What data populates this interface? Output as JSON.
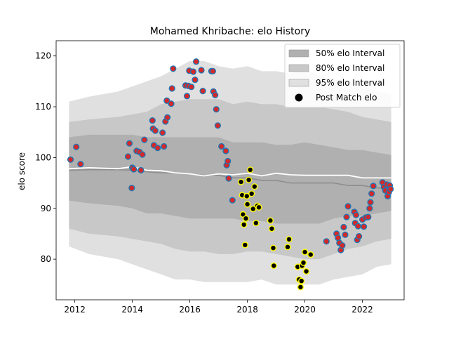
{
  "chart_data": {
    "type": "scatter",
    "title": "Mohamed Khribache: elo History",
    "xlabel": "",
    "ylabel": "elo score",
    "xlim": [
      2011.35,
      2023.45
    ],
    "ylim": [
      72.0,
      123.0
    ],
    "x_ticks": [
      2012,
      2014,
      2016,
      2018,
      2020,
      2022
    ],
    "y_ticks": [
      80,
      90,
      100,
      110,
      120
    ],
    "legend_position": "top-right",
    "legend": [
      {
        "label": "50% elo Interval",
        "color": "#b0b0b0",
        "kind": "patch"
      },
      {
        "label": "80% elo Interval",
        "color": "#c8c8c8",
        "kind": "patch"
      },
      {
        "label": "95% elo Interval",
        "color": "#e0e0e0",
        "kind": "patch"
      },
      {
        "label": "Post Match elo",
        "color": "#000000",
        "kind": "marker"
      }
    ],
    "colors": {
      "band50": "#b0b0b0",
      "band80": "#c8c8c8",
      "band95": "#e0e0e0",
      "median_line": "#8c8c8c",
      "mean_line": "#ffffff",
      "marker_fill_blue": "#1f77b4",
      "marker_inner_red": "#d62728",
      "marker_fill_yellow": "#ffff00",
      "marker_inner_black": "#000000"
    },
    "bands": {
      "x": [
        2011.8,
        2012.5,
        2013.5,
        2014.0,
        2014.5,
        2015.0,
        2015.5,
        2016.0,
        2016.5,
        2017.0,
        2017.5,
        2018.0,
        2018.5,
        2019.0,
        2019.5,
        2020.0,
        2020.5,
        2021.0,
        2021.5,
        2022.0,
        2022.5,
        2023.0
      ],
      "p95_hi": [
        111.0,
        112.0,
        113.0,
        114.0,
        115.0,
        116.0,
        117.5,
        119.0,
        119.0,
        118.0,
        117.5,
        118.0,
        117.0,
        117.0,
        116.5,
        117.5,
        116.0,
        115.5,
        115.0,
        114.0,
        113.0,
        112.5
      ],
      "p80_hi": [
        107.0,
        107.5,
        108.0,
        108.5,
        109.0,
        110.5,
        111.0,
        111.5,
        111.5,
        111.5,
        110.5,
        111.0,
        110.5,
        110.5,
        110.0,
        110.0,
        110.0,
        109.5,
        109.0,
        108.0,
        107.5,
        107.0
      ],
      "p50_hi": [
        104.0,
        104.5,
        104.5,
        104.5,
        104.0,
        104.0,
        104.0,
        104.0,
        104.0,
        104.0,
        103.0,
        103.0,
        103.0,
        102.5,
        102.5,
        103.0,
        102.5,
        102.0,
        101.5,
        101.5,
        101.0,
        100.5
      ],
      "p50_lo": [
        91.5,
        91.0,
        90.5,
        90.0,
        89.0,
        89.0,
        88.5,
        88.0,
        88.0,
        88.0,
        88.0,
        87.5,
        87.5,
        87.0,
        87.0,
        87.0,
        87.0,
        88.0,
        88.5,
        88.5,
        89.0,
        89.5
      ],
      "p80_lo": [
        86.0,
        85.0,
        84.5,
        84.0,
        83.5,
        83.0,
        82.0,
        81.5,
        81.5,
        81.0,
        81.0,
        81.5,
        81.5,
        81.0,
        80.5,
        80.0,
        80.0,
        81.0,
        82.0,
        82.5,
        83.5,
        84.0
      ],
      "p95_lo": [
        82.5,
        81.0,
        80.0,
        79.0,
        78.0,
        77.0,
        76.0,
        76.0,
        75.5,
        75.5,
        75.5,
        75.5,
        76.0,
        75.0,
        75.0,
        75.0,
        75.0,
        76.0,
        76.5,
        77.0,
        78.5,
        79.0
      ],
      "median": [
        97.5,
        97.6,
        97.6,
        97.5,
        97.2,
        97.0,
        97.0,
        96.8,
        96.5,
        96.5,
        96.0,
        96.0,
        95.5,
        95.5,
        95.0,
        95.0,
        95.0,
        95.0,
        94.5,
        94.5,
        94.0,
        94.0
      ],
      "mean": [
        97.8,
        98.0,
        97.8,
        98.2,
        97.5,
        97.4,
        97.0,
        96.8,
        96.4,
        96.8,
        96.6,
        96.9,
        96.4,
        96.9,
        96.6,
        96.5,
        96.5,
        96.5,
        96.5,
        96.0,
        96.0,
        96.0
      ]
    },
    "series": [
      {
        "name": "Post Match elo",
        "style": "blue",
        "points": [
          [
            2011.85,
            99.6
          ],
          [
            2012.05,
            102.1
          ],
          [
            2012.2,
            98.7
          ],
          [
            2013.85,
            100.2
          ],
          [
            2013.9,
            102.8
          ],
          [
            2014.0,
            98.0
          ],
          [
            2014.05,
            97.7
          ],
          [
            2013.98,
            94.0
          ],
          [
            2014.15,
            101.3
          ],
          [
            2014.25,
            101.1
          ],
          [
            2014.35,
            100.6
          ],
          [
            2014.3,
            97.5
          ],
          [
            2014.42,
            103.5
          ],
          [
            2014.7,
            107.3
          ],
          [
            2014.72,
            105.7
          ],
          [
            2014.8,
            105.3
          ],
          [
            2014.75,
            102.4
          ],
          [
            2014.88,
            101.9
          ],
          [
            2015.05,
            104.9
          ],
          [
            2015.1,
            102.2
          ],
          [
            2015.15,
            107.1
          ],
          [
            2015.2,
            111.2
          ],
          [
            2015.22,
            107.9
          ],
          [
            2015.35,
            110.6
          ],
          [
            2015.38,
            113.6
          ],
          [
            2015.42,
            117.5
          ],
          [
            2015.85,
            114.2
          ],
          [
            2015.9,
            112.1
          ],
          [
            2015.95,
            114.1
          ],
          [
            2015.98,
            117.1
          ],
          [
            2016.05,
            113.9
          ],
          [
            2016.12,
            116.9
          ],
          [
            2016.18,
            115.3
          ],
          [
            2016.22,
            118.9
          ],
          [
            2016.4,
            117.2
          ],
          [
            2016.45,
            113.1
          ],
          [
            2016.75,
            117.0
          ],
          [
            2016.8,
            117.0
          ],
          [
            2016.82,
            113.0
          ],
          [
            2016.88,
            112.3
          ],
          [
            2016.92,
            109.5
          ],
          [
            2016.97,
            106.3
          ],
          [
            2017.1,
            102.2
          ],
          [
            2017.25,
            101.3
          ],
          [
            2017.28,
            98.5
          ],
          [
            2017.32,
            99.3
          ],
          [
            2017.35,
            95.9
          ],
          [
            2017.48,
            91.6
          ],
          [
            2020.75,
            83.5
          ],
          [
            2021.1,
            85.0
          ],
          [
            2021.15,
            84.2
          ],
          [
            2021.2,
            83.2
          ],
          [
            2021.25,
            81.8
          ],
          [
            2021.3,
            82.7
          ],
          [
            2021.35,
            86.3
          ],
          [
            2021.4,
            84.8
          ],
          [
            2021.45,
            88.3
          ],
          [
            2021.5,
            90.4
          ],
          [
            2021.72,
            89.3
          ],
          [
            2021.75,
            87.1
          ],
          [
            2021.78,
            88.7
          ],
          [
            2021.82,
            83.8
          ],
          [
            2021.85,
            86.5
          ],
          [
            2021.88,
            84.5
          ],
          [
            2022.0,
            87.8
          ],
          [
            2022.05,
            86.4
          ],
          [
            2022.12,
            88.2
          ],
          [
            2022.2,
            88.3
          ],
          [
            2022.25,
            90.0
          ],
          [
            2022.28,
            91.2
          ],
          [
            2022.32,
            92.9
          ],
          [
            2022.38,
            94.4
          ],
          [
            2022.7,
            95.1
          ],
          [
            2022.75,
            94.2
          ],
          [
            2022.8,
            93.5
          ],
          [
            2022.85,
            94.7
          ],
          [
            2022.88,
            92.4
          ],
          [
            2022.92,
            93.2
          ],
          [
            2022.95,
            94.5
          ],
          [
            2022.98,
            93.8
          ]
        ]
      },
      {
        "name": "Post Match elo",
        "style": "yellow",
        "points": [
          [
            2017.78,
            95.2
          ],
          [
            2017.82,
            92.6
          ],
          [
            2017.85,
            88.8
          ],
          [
            2017.88,
            86.8
          ],
          [
            2017.92,
            82.8
          ],
          [
            2017.95,
            88.0
          ],
          [
            2017.98,
            92.4
          ],
          [
            2018.0,
            90.8
          ],
          [
            2018.05,
            95.6
          ],
          [
            2018.1,
            97.6
          ],
          [
            2018.15,
            92.9
          ],
          [
            2018.2,
            89.9
          ],
          [
            2018.25,
            94.3
          ],
          [
            2018.3,
            87.1
          ],
          [
            2018.35,
            90.5
          ],
          [
            2018.4,
            90.2
          ],
          [
            2018.8,
            87.6
          ],
          [
            2018.85,
            86.0
          ],
          [
            2018.9,
            82.2
          ],
          [
            2018.92,
            78.7
          ],
          [
            2019.4,
            82.4
          ],
          [
            2019.45,
            83.9
          ],
          [
            2019.75,
            78.5
          ],
          [
            2019.8,
            76.0
          ],
          [
            2019.85,
            74.5
          ],
          [
            2019.88,
            75.7
          ],
          [
            2019.9,
            78.7
          ],
          [
            2019.95,
            79.3
          ],
          [
            2020.0,
            81.4
          ],
          [
            2020.05,
            77.6
          ],
          [
            2020.2,
            80.9
          ]
        ]
      }
    ]
  }
}
